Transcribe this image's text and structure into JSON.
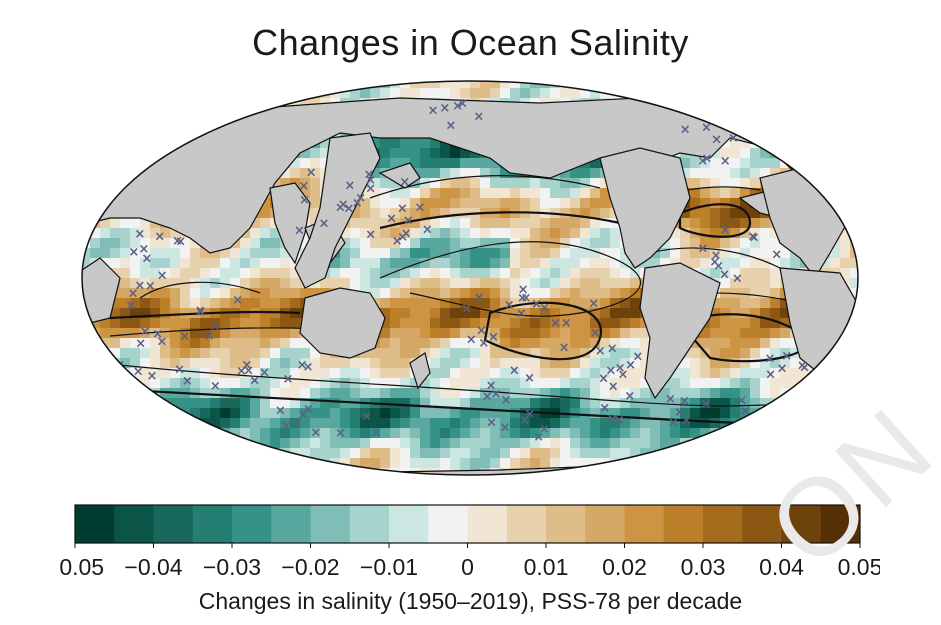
{
  "title": "Changes in Ocean Salinity",
  "colorbar": {
    "label": "Changes in salinity (1950–2019), PSS-78 per decade",
    "min": -0.05,
    "max": 0.05,
    "ticks": [
      "−0.05",
      "−0.04",
      "−0.03",
      "−0.02",
      "−0.01",
      "0",
      "0.01",
      "0.02",
      "0.03",
      "0.04",
      "0.05"
    ],
    "colors": [
      "#013c30",
      "#0b5448",
      "#18685c",
      "#257e72",
      "#349287",
      "#58a89f",
      "#7fbdb6",
      "#a7d3cd",
      "#cce6e2",
      "#f2f2f2",
      "#f1e6d3",
      "#e8d2ae",
      "#dfbd88",
      "#d6a865",
      "#cc9443",
      "#bc7f2a",
      "#a56b1c",
      "#8c5712",
      "#6e420b",
      "#553007"
    ]
  },
  "land_color": "#c8c8c8",
  "stipple_color": "#5b5f86",
  "watermark": "ON"
}
